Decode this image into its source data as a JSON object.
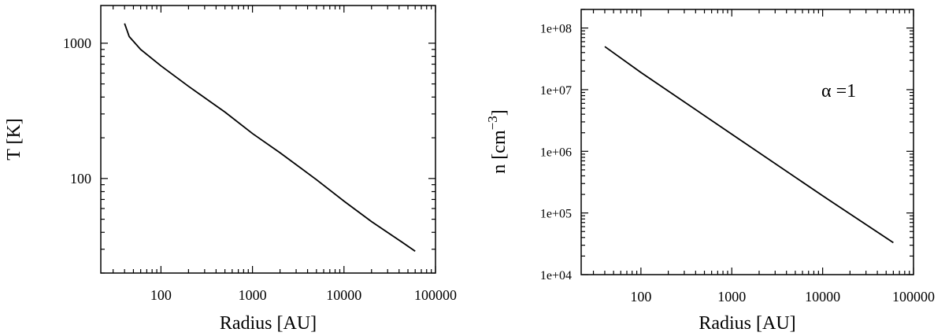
{
  "chart_data": [
    {
      "type": "line",
      "title": "",
      "xlabel": "Radius [AU]",
      "ylabel": "T [K]",
      "xscale": "log",
      "yscale": "log",
      "xlim": [
        22,
        100000
      ],
      "ylim": [
        20,
        1900
      ],
      "xticks": [
        "100",
        "1000",
        "10000",
        "100000"
      ],
      "yticks": [
        "100",
        "1000"
      ],
      "grid": false,
      "series": [
        {
          "x": [
            40,
            45,
            60,
            100,
            200,
            500,
            1000,
            2000,
            5000,
            10000,
            20000,
            40000,
            60000
          ],
          "y": [
            1400,
            1120,
            900,
            680,
            480,
            310,
            215,
            155,
            98,
            68,
            48,
            35,
            29
          ]
        }
      ]
    },
    {
      "type": "line",
      "title": "",
      "xlabel": "Radius [AU]",
      "ylabel": "n [cm",
      "ylabel_sup": "−3",
      "ylabel_end": "]",
      "xscale": "log",
      "yscale": "log",
      "xlim": [
        22,
        100000
      ],
      "ylim": [
        10000,
        200000000
      ],
      "xticks": [
        "100",
        "1000",
        "10000",
        "100000"
      ],
      "yticks": [
        "1e+04",
        "1e+05",
        "1e+06",
        "1e+07",
        "1e+08"
      ],
      "grid": false,
      "annotation": "α =1",
      "series": [
        {
          "x": [
            40,
            100,
            1000,
            10000,
            60000
          ],
          "y": [
            50000000,
            19000000,
            1900000,
            190000,
            33000
          ]
        }
      ]
    }
  ]
}
